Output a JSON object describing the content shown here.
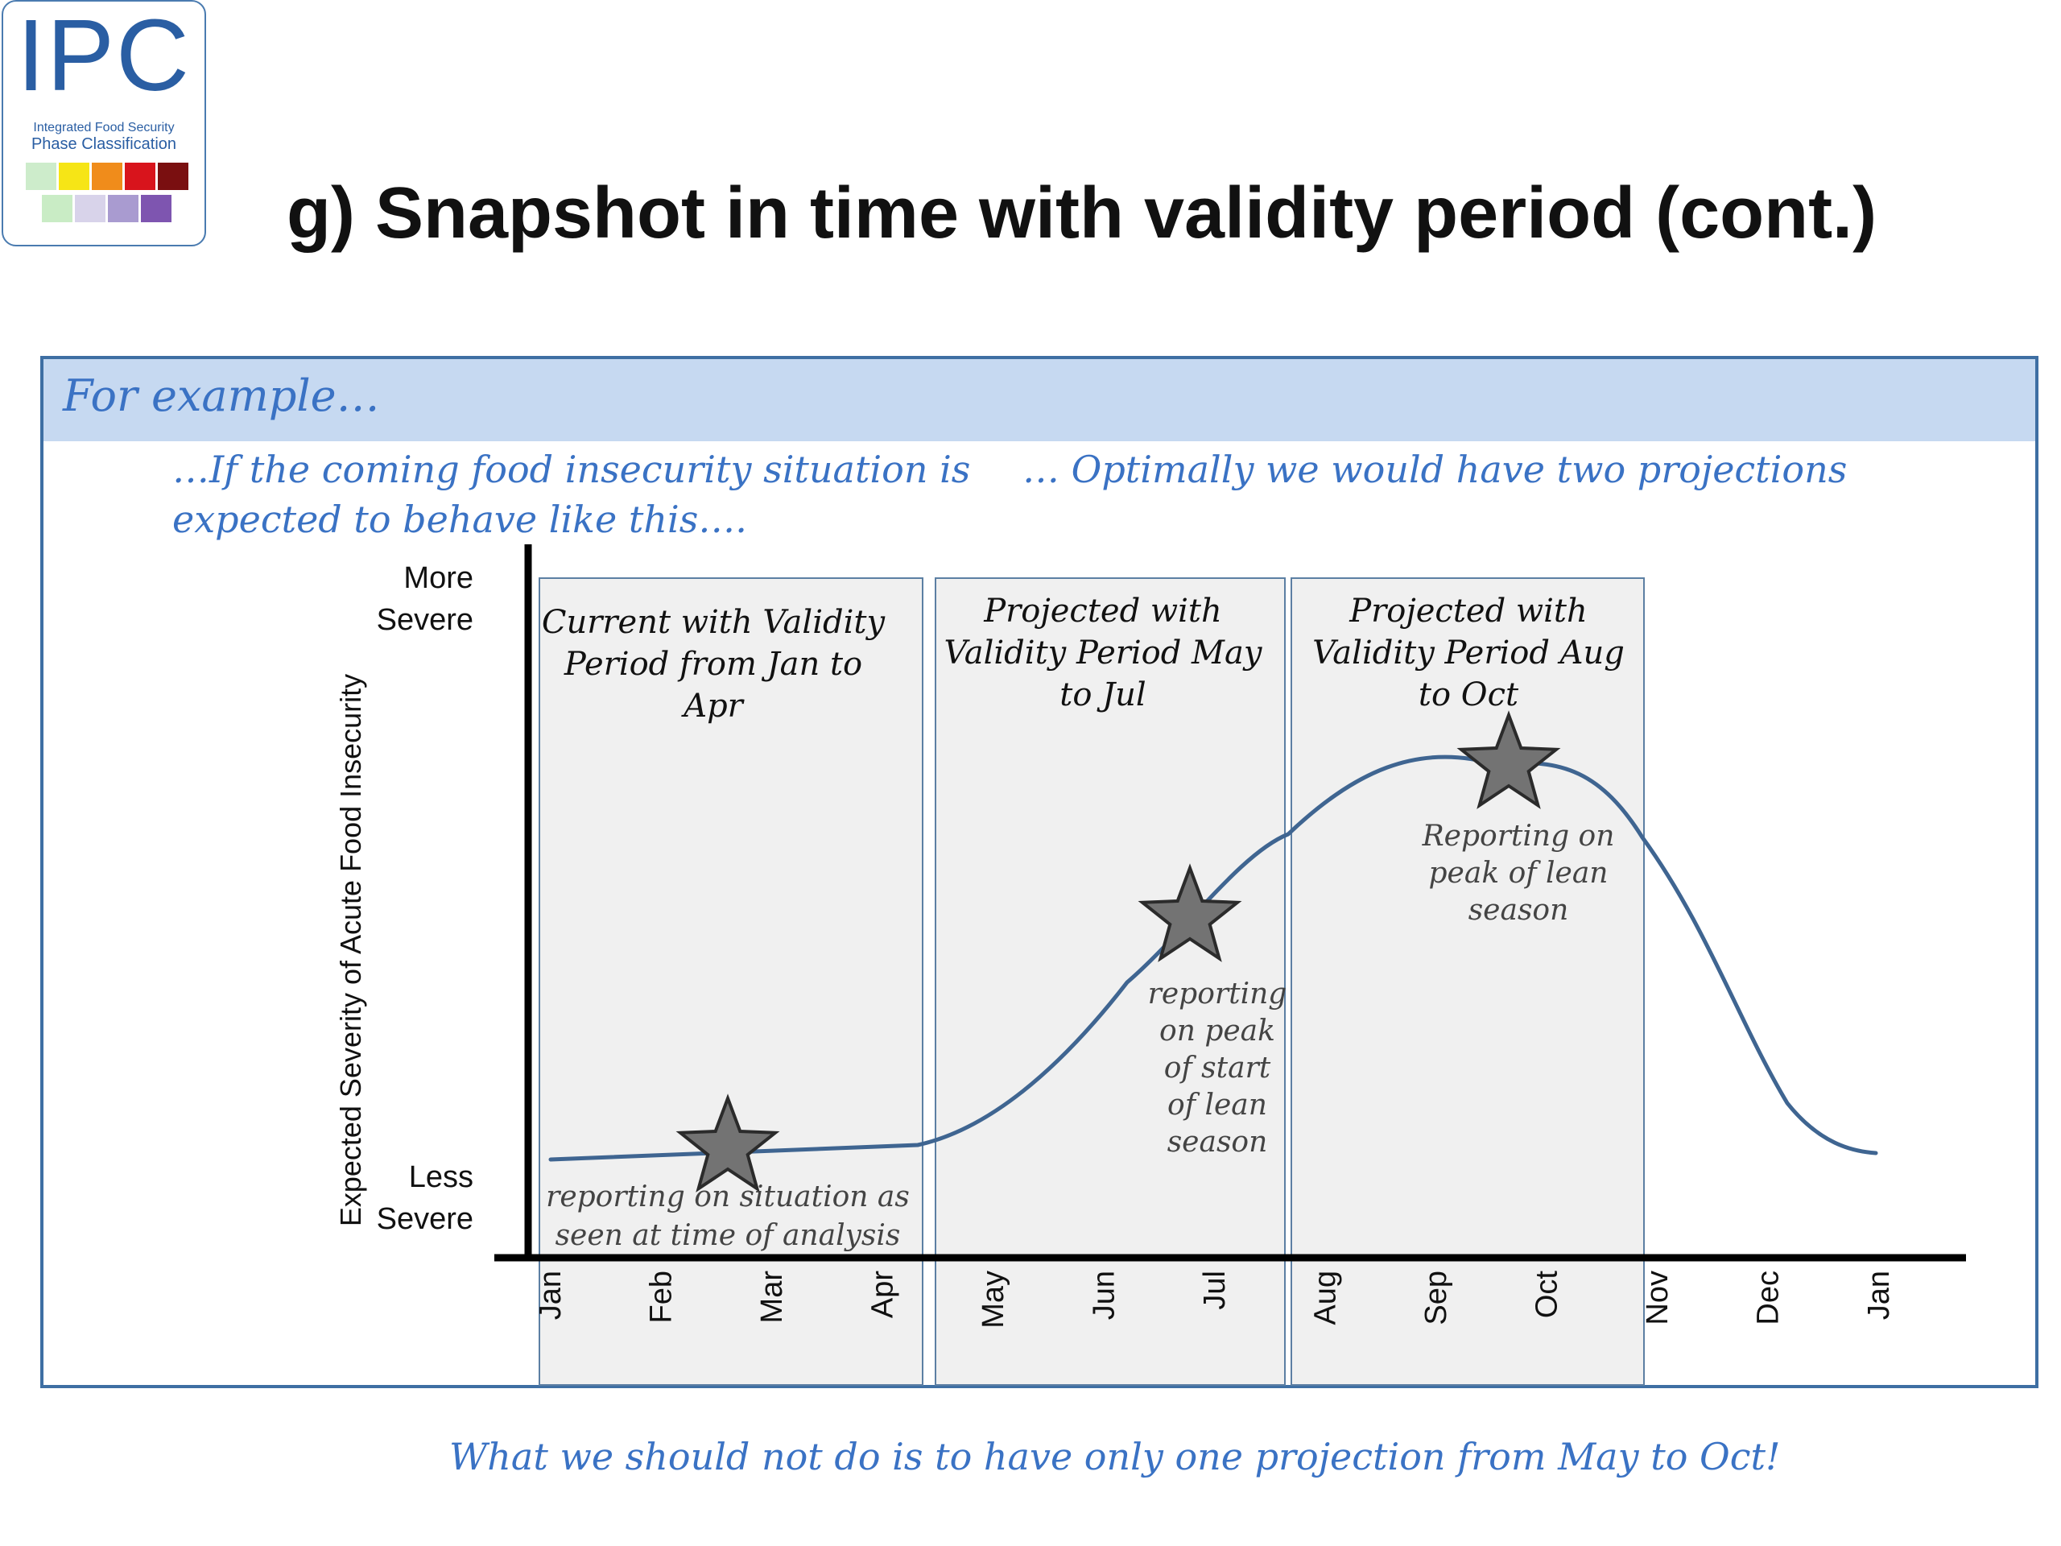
{
  "logo": {
    "text": "IPC",
    "line1": "Integrated Food Security",
    "line2": "Phase Classification",
    "colors_top": [
      "#cdeccb",
      "#f6e516",
      "#f08c1b",
      "#d8141c",
      "#7a0f10"
    ],
    "colors_bottom": [
      "#c9ecc5",
      "#d8d3ea",
      "#a99bd0",
      "#7e55b0"
    ]
  },
  "title": "g) Snapshot in time with validity period (cont.)",
  "example_label": "For example…",
  "note_left": [
    "…If the coming food insecurity situation is",
    "expected to behave like this…."
  ],
  "note_right": "… Optimally we would have two projections",
  "footer": "What we should not do is to have only one projection from May to Oct!",
  "axis": {
    "y_label": "Expected Severity of Acute Food Insecurity",
    "y_top": [
      "More",
      "Severe"
    ],
    "y_bottom": [
      "Less",
      "Severe"
    ],
    "months": [
      "Jan",
      "Feb",
      "Mar",
      "Apr",
      "May",
      "Jun",
      "Jul",
      "Aug",
      "Sep",
      "Oct",
      "Nov",
      "Dec",
      "Jan"
    ]
  },
  "periods": [
    {
      "label": [
        "Current with Validity",
        "Period from Jan to",
        "Apr"
      ]
    },
    {
      "label": [
        "Projected with",
        "Validity Period May",
        "to Jul"
      ]
    },
    {
      "label": [
        "Projected with",
        "Validity Period Aug",
        "to Oct"
      ]
    }
  ],
  "annotations": {
    "a1": [
      "reporting on situation as",
      "seen at time of analysis"
    ],
    "a2": [
      "reporting",
      "on peak",
      "of start",
      "of lean",
      "season"
    ],
    "a3": [
      "Reporting on",
      "peak of lean",
      "season"
    ]
  },
  "colors": {
    "curve": "#3f6591",
    "frame": "#3e6fa3",
    "header_bg": "#c6d9f1",
    "handwriting": "#3a72c4",
    "period_fill": "#f0f0f0",
    "period_stroke": "#5c7fa3",
    "star_fill": "#737373"
  }
}
